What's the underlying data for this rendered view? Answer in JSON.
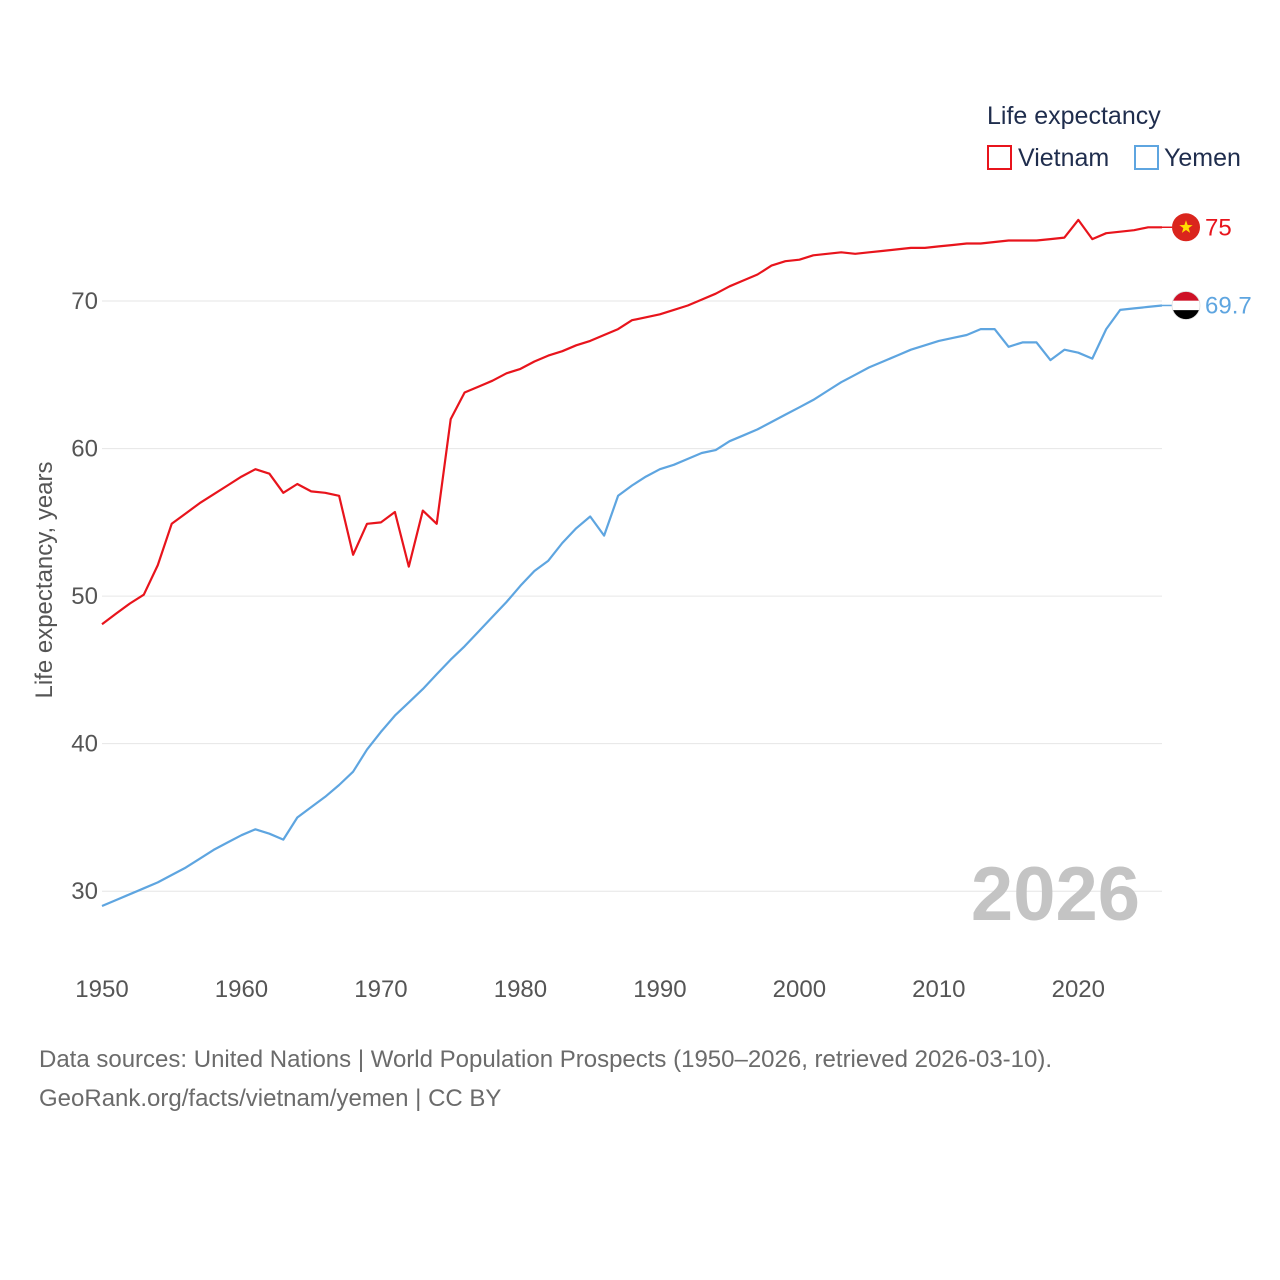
{
  "chart_data": {
    "type": "line",
    "title": "",
    "xlabel": "",
    "ylabel": "Life expectancy, years",
    "xlim": [
      1950,
      2026
    ],
    "ylim": [
      25,
      78
    ],
    "y_ticks": [
      30,
      40,
      50,
      60,
      70
    ],
    "x_ticks": [
      1950,
      1960,
      1970,
      1980,
      1990,
      2000,
      2010,
      2020
    ],
    "grid": true,
    "legend_title": "Life expectancy",
    "legend_position": "top-right",
    "year_watermark": "2026",
    "series": [
      {
        "name": "Vietnam",
        "color": "#e8141c",
        "end_label": "75",
        "flag_icon": "vietnam-flag-icon",
        "x": [
          1950,
          1951,
          1952,
          1953,
          1954,
          1955,
          1956,
          1957,
          1958,
          1959,
          1960,
          1961,
          1962,
          1963,
          1964,
          1965,
          1966,
          1967,
          1968,
          1969,
          1970,
          1971,
          1972,
          1973,
          1974,
          1975,
          1976,
          1977,
          1978,
          1979,
          1980,
          1981,
          1982,
          1983,
          1984,
          1985,
          1986,
          1987,
          1988,
          1989,
          1990,
          1991,
          1992,
          1993,
          1994,
          1995,
          1996,
          1997,
          1998,
          1999,
          2000,
          2001,
          2002,
          2003,
          2004,
          2005,
          2006,
          2007,
          2008,
          2009,
          2010,
          2011,
          2012,
          2013,
          2014,
          2015,
          2016,
          2017,
          2018,
          2019,
          2020,
          2021,
          2022,
          2023,
          2024,
          2025,
          2026
        ],
        "values": [
          48.1,
          48.8,
          49.5,
          50.1,
          52.1,
          54.9,
          55.6,
          56.3,
          56.9,
          57.5,
          58.1,
          58.6,
          58.3,
          57.0,
          57.6,
          57.1,
          57.0,
          56.8,
          52.8,
          54.9,
          55.0,
          55.7,
          52.0,
          55.8,
          54.9,
          62.0,
          63.8,
          64.2,
          64.6,
          65.1,
          65.4,
          65.9,
          66.3,
          66.6,
          67.0,
          67.3,
          67.7,
          68.1,
          68.7,
          68.9,
          69.1,
          69.4,
          69.7,
          70.1,
          70.5,
          71.0,
          71.4,
          71.8,
          72.4,
          72.7,
          72.8,
          73.1,
          73.2,
          73.3,
          73.2,
          73.3,
          73.4,
          73.5,
          73.6,
          73.6,
          73.7,
          73.8,
          73.9,
          73.9,
          74.0,
          74.1,
          74.1,
          74.1,
          74.2,
          74.3,
          75.5,
          74.2,
          74.6,
          74.7,
          74.8,
          75.0,
          75.0
        ]
      },
      {
        "name": "Yemen",
        "color": "#5ea5e0",
        "end_label": "69.7",
        "flag_icon": "yemen-flag-icon",
        "x": [
          1950,
          1951,
          1952,
          1953,
          1954,
          1955,
          1956,
          1957,
          1958,
          1959,
          1960,
          1961,
          1962,
          1963,
          1964,
          1965,
          1966,
          1967,
          1968,
          1969,
          1970,
          1971,
          1972,
          1973,
          1974,
          1975,
          1976,
          1977,
          1978,
          1979,
          1980,
          1981,
          1982,
          1983,
          1984,
          1985,
          1986,
          1987,
          1988,
          1989,
          1990,
          1991,
          1992,
          1993,
          1994,
          1995,
          1996,
          1997,
          1998,
          1999,
          2000,
          2001,
          2002,
          2003,
          2004,
          2005,
          2006,
          2007,
          2008,
          2009,
          2010,
          2011,
          2012,
          2013,
          2014,
          2015,
          2016,
          2017,
          2018,
          2019,
          2020,
          2021,
          2022,
          2023,
          2024,
          2025,
          2026
        ],
        "values": [
          29.0,
          29.4,
          29.8,
          30.2,
          30.6,
          31.1,
          31.6,
          32.2,
          32.8,
          33.3,
          33.8,
          34.2,
          33.9,
          33.5,
          35.0,
          35.7,
          36.4,
          37.2,
          38.1,
          39.6,
          40.8,
          41.9,
          42.8,
          43.7,
          44.7,
          45.7,
          46.6,
          47.6,
          48.6,
          49.6,
          50.7,
          51.7,
          52.4,
          53.6,
          54.6,
          55.4,
          54.1,
          56.8,
          57.5,
          58.1,
          58.6,
          58.9,
          59.3,
          59.7,
          59.9,
          60.5,
          60.9,
          61.3,
          61.8,
          62.3,
          62.8,
          63.3,
          63.9,
          64.5,
          65.0,
          65.5,
          65.9,
          66.3,
          66.7,
          67.0,
          67.3,
          67.5,
          67.7,
          68.1,
          68.1,
          66.9,
          67.2,
          67.2,
          66.0,
          66.7,
          66.5,
          66.1,
          68.1,
          69.4,
          69.5,
          69.6,
          69.7
        ]
      }
    ]
  },
  "footer": {
    "line1": "Data sources: United Nations | World Population Prospects (1950–2026, retrieved 2026-03-10).",
    "line2": "GeoRank.org/facts/vietnam/yemen | CC BY"
  }
}
